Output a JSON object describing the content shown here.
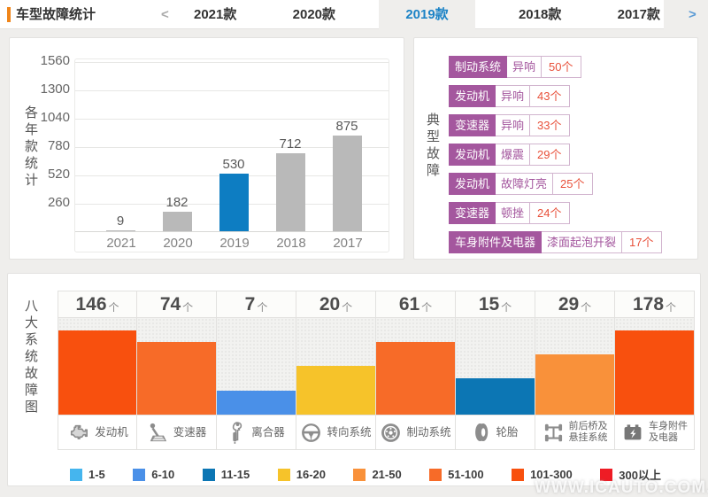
{
  "page": {
    "watermark": "WWW.ICAUTO.COM.CN"
  },
  "header": {
    "title": "车型故障统计",
    "accent_color": "#f08519",
    "prev_arrow": "<",
    "next_arrow": ">",
    "tabs": [
      {
        "label": "2021款",
        "selected": false
      },
      {
        "label": "2020款",
        "selected": false
      },
      {
        "label": "2019款",
        "selected": true
      },
      {
        "label": "2018款",
        "selected": false
      },
      {
        "label": "2017款",
        "selected": false
      }
    ]
  },
  "chart_data": [
    {
      "type": "bar",
      "title": "各年款统计",
      "ylabel": "各年款统计",
      "xlabel": "",
      "categories": [
        "2021",
        "2020",
        "2019",
        "2018",
        "2017"
      ],
      "values": [
        9,
        182,
        530,
        712,
        875
      ],
      "unit": "个",
      "highlight_category": "2019",
      "bar_color_default": "#b9b9b9",
      "bar_color_highlight": "#0d7dc2",
      "ylim": [
        0,
        1560
      ],
      "yticks": [
        260,
        520,
        780,
        1040,
        1300,
        1560
      ],
      "grid": true,
      "legend_position": "none"
    },
    {
      "type": "bar",
      "title": "八大系统故障图",
      "categories": [
        "发动机",
        "变速器",
        "离合器",
        "转向系统",
        "制动系统",
        "轮胎",
        "前后桥及悬挂系统",
        "车身附件及电器"
      ],
      "values": [
        146,
        74,
        7,
        20,
        61,
        15,
        29,
        178
      ],
      "unit": "个",
      "grid": false,
      "legend_position": "bottom",
      "buckets": [
        {
          "label": "1-5",
          "min": 1,
          "max": 5,
          "color": "#45b5ee"
        },
        {
          "label": "6-10",
          "min": 6,
          "max": 10,
          "color": "#4a90e8"
        },
        {
          "label": "11-15",
          "min": 11,
          "max": 15,
          "color": "#0c76b4"
        },
        {
          "label": "16-20",
          "min": 16,
          "max": 20,
          "color": "#f6c32a"
        },
        {
          "label": "21-50",
          "min": 21,
          "max": 50,
          "color": "#f9913a"
        },
        {
          "label": "51-100",
          "min": 51,
          "max": 100,
          "color": "#f76b28"
        },
        {
          "label": "101-300",
          "min": 101,
          "max": 300,
          "color": "#f8500e"
        },
        {
          "label": "300以上",
          "min": 301,
          "max": 999999,
          "color": "#ee1c25"
        }
      ]
    }
  ],
  "typical_faults": {
    "side_label": "典型故障",
    "system_chip_color": "#a4579e",
    "count_color": "#e8503a",
    "items": [
      {
        "system": "制动系统",
        "fault": "异响",
        "count": "50个"
      },
      {
        "system": "发动机",
        "fault": "异响",
        "count": "43个"
      },
      {
        "system": "变速器",
        "fault": "异响",
        "count": "33个"
      },
      {
        "system": "发动机",
        "fault": "爆震",
        "count": "29个"
      },
      {
        "system": "发动机",
        "fault": "故障灯亮",
        "count": "25个"
      },
      {
        "system": "变速器",
        "fault": "顿挫",
        "count": "24个"
      },
      {
        "system": "车身附件及电器",
        "fault": "漆面起泡开裂",
        "count": "17个"
      }
    ]
  },
  "systems_chart": {
    "side_label": "八大系统故障图",
    "columns": [
      {
        "icon": "engine-icon",
        "label_lines": [
          "发动机"
        ]
      },
      {
        "icon": "gearshift-icon",
        "label_lines": [
          "变速器"
        ]
      },
      {
        "icon": "clutch-pedal-icon",
        "label_lines": [
          "离合器"
        ]
      },
      {
        "icon": "steering-wheel-icon",
        "label_lines": [
          "转向系统"
        ]
      },
      {
        "icon": "brake-disc-icon",
        "label_lines": [
          "制动系统"
        ]
      },
      {
        "icon": "tire-icon",
        "label_lines": [
          "轮胎"
        ]
      },
      {
        "icon": "axle-suspension-icon",
        "label_lines": [
          "前后桥及",
          "悬挂系统"
        ]
      },
      {
        "icon": "battery-icon",
        "label_lines": [
          "车身附件",
          "及电器"
        ]
      }
    ]
  }
}
